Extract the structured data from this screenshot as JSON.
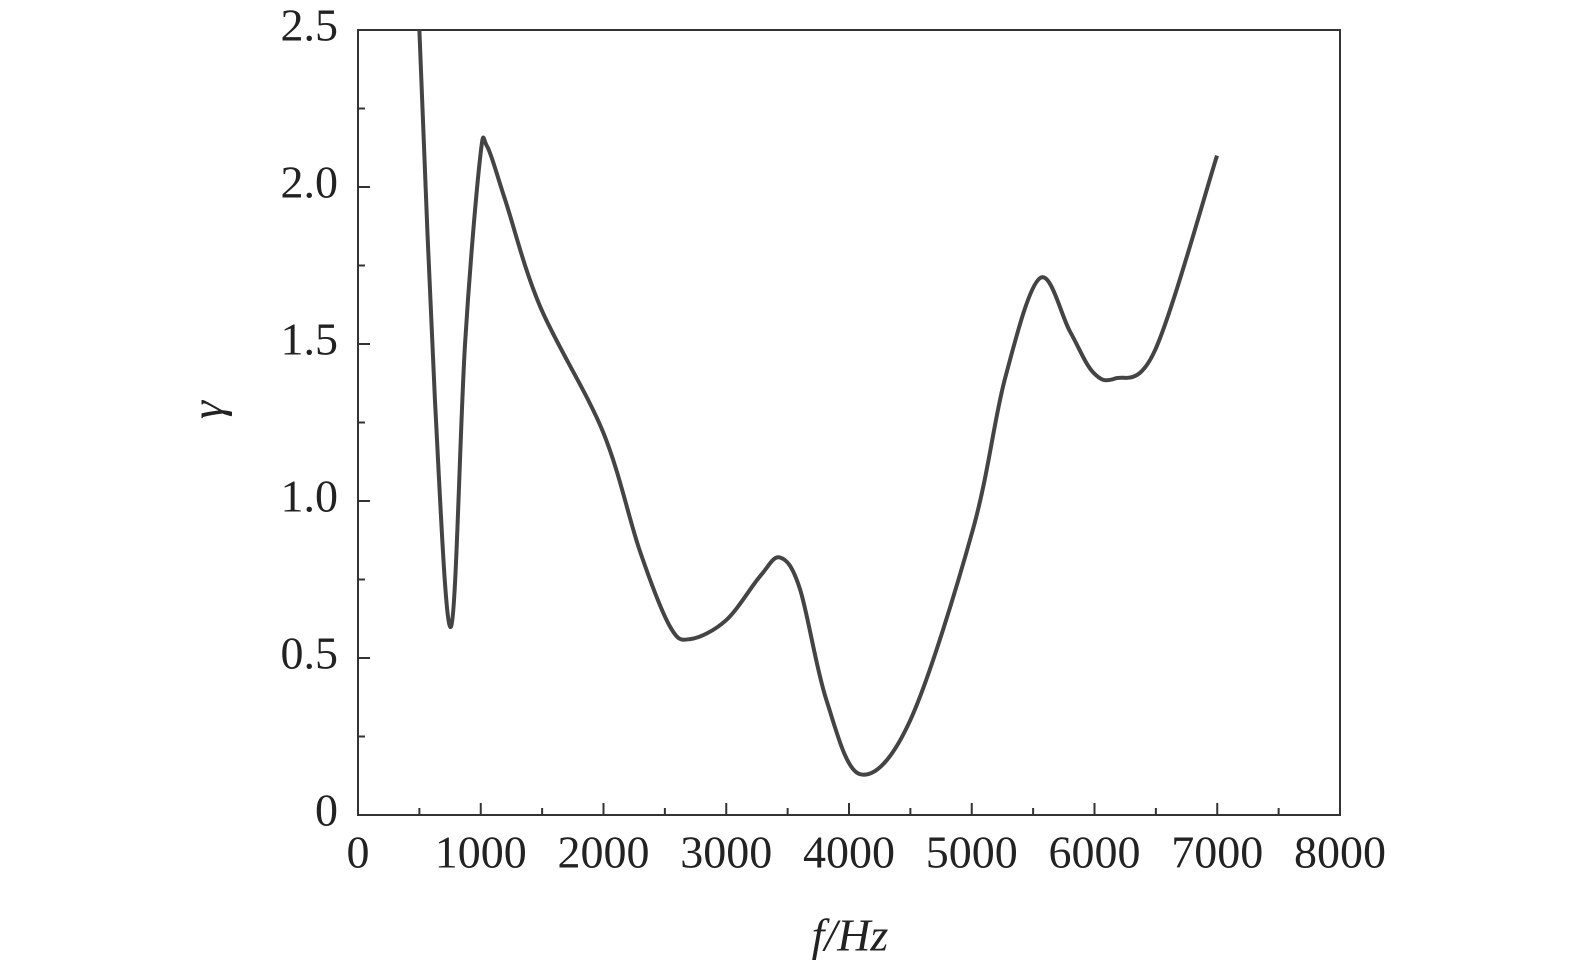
{
  "chart_data": {
    "type": "line",
    "x_label": "f/Hz",
    "y_label": "γ",
    "x": [
      500,
      627,
      758,
      872,
      994,
      1051,
      1198,
      1483,
      1996,
      2297,
      2542,
      2705,
      2998,
      3275,
      3438,
      3600,
      3813,
      4090,
      4497,
      5010,
      5271,
      5556,
      5800,
      5988,
      6167,
      6493,
      6998
    ],
    "series": [
      {
        "color": "#444444",
        "values": [
          2.5,
          1.32,
          0.6,
          1.5,
          2.09,
          2.13,
          1.96,
          1.62,
          1.22,
          0.84,
          0.6,
          0.56,
          0.62,
          0.76,
          0.82,
          0.72,
          0.37,
          0.13,
          0.3,
          0.91,
          1.39,
          1.71,
          1.54,
          1.41,
          1.39,
          1.48,
          2.1
        ]
      }
    ],
    "xlim": [
      0,
      8000
    ],
    "xticks": [
      0,
      1000,
      2000,
      3000,
      4000,
      5000,
      6000,
      7000,
      8000
    ],
    "ylim": [
      0,
      2.5
    ],
    "yticks": [
      0,
      0.5,
      {
        "value": 1,
        "label": "1.0"
      },
      1.5,
      {
        "value": 2,
        "label": "2.0"
      },
      2.5
    ],
    "grid": false
  }
}
